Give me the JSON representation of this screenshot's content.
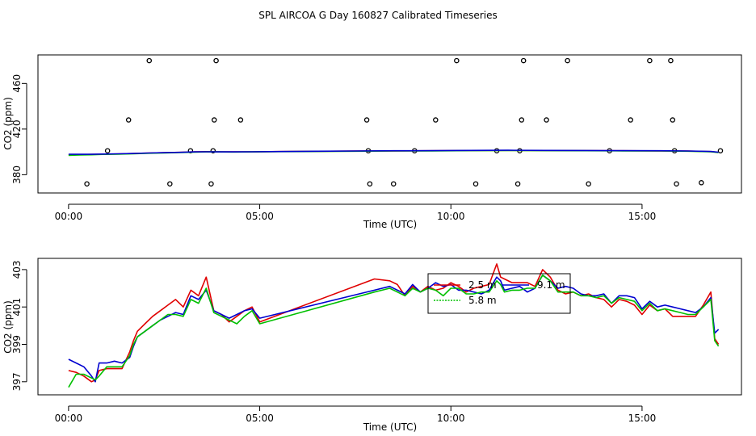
{
  "figure": {
    "title": "SPL AIRCOA G  Day 160827  Calibrated Timeseries"
  },
  "colors": {
    "series_2_5m": "#e00000",
    "series_5_8m": "#00c000",
    "series_9_1m": "#0000d0",
    "points": "#000000",
    "axes": "#000000"
  },
  "chart_data": [
    {
      "type": "line",
      "title": "",
      "xlabel": "Time (UTC)",
      "ylabel": "CO2 (ppm)",
      "x_unit": "hours UTC",
      "xlim": [
        -0.8,
        17.6
      ],
      "ylim": [
        364,
        485
      ],
      "x_ticks": [
        {
          "v": 0,
          "label": "00:00"
        },
        {
          "v": 5,
          "label": "05:00"
        },
        {
          "v": 10,
          "label": "10:00"
        },
        {
          "v": 15,
          "label": "15:00"
        }
      ],
      "y_ticks": [
        {
          "v": 380,
          "label": "380"
        },
        {
          "v": 420,
          "label": "420"
        },
        {
          "v": 460,
          "label": "460"
        }
      ],
      "grid": false,
      "scatter_points": {
        "x": [
          0.48,
          1.02,
          1.57,
          2.11,
          2.65,
          3.19,
          3.73,
          3.78,
          3.81,
          3.86,
          4.5,
          7.8,
          7.84,
          7.88,
          8.5,
          9.05,
          9.6,
          10.15,
          10.65,
          11.2,
          11.75,
          11.8,
          11.85,
          11.9,
          12.5,
          13.05,
          13.6,
          14.15,
          14.7,
          15.2,
          15.75,
          15.8,
          15.85,
          15.9,
          16.55,
          17.05
        ],
        "y": [
          372,
          401,
          428,
          480,
          372,
          401,
          372,
          401,
          428,
          480,
          428,
          428,
          401,
          372,
          372,
          401,
          428,
          480,
          372,
          401,
          372,
          401,
          428,
          480,
          428,
          480,
          372,
          401,
          428,
          480,
          480,
          428,
          401,
          372,
          373,
          401
        ]
      },
      "series": [
        {
          "key": "series_2_5m",
          "x": [
            0,
            0.3,
            0.6,
            0.9,
            1.3,
            1.7,
            2.1,
            2.5,
            2.9,
            3.3,
            3.6,
            3.9,
            4.3,
            4.8,
            5.5,
            6.5,
            7.5,
            8.5,
            9.5,
            10.5,
            11.5,
            12.5,
            13.5,
            14.5,
            15.5,
            16.2,
            16.8,
            17.0
          ],
          "y": [
            397.5,
            397.6,
            397.8,
            398.0,
            398.2,
            398.6,
            399.0,
            399.3,
            399.6,
            400.0,
            400.2,
            400.1,
            400.0,
            400.1,
            400.3,
            400.5,
            400.7,
            400.9,
            401.0,
            401.2,
            401.3,
            401.2,
            401.1,
            401.0,
            400.9,
            400.7,
            400.2,
            399.6
          ]
        },
        {
          "key": "series_5_8m",
          "x": [
            0,
            0.3,
            0.6,
            0.9,
            1.3,
            1.7,
            2.1,
            2.5,
            2.9,
            3.3,
            3.6,
            3.9,
            4.3,
            4.8,
            5.5,
            6.5,
            7.5,
            8.5,
            9.5,
            10.5,
            11.5,
            12.5,
            13.5,
            14.5,
            15.5,
            16.2,
            16.8,
            17.0
          ],
          "y": [
            397.0,
            397.3,
            397.5,
            397.8,
            398.0,
            398.3,
            398.8,
            399.1,
            399.4,
            399.8,
            400.0,
            400.0,
            399.9,
            400.0,
            400.2,
            400.4,
            400.6,
            400.8,
            400.9,
            401.1,
            401.2,
            401.1,
            401.0,
            400.9,
            400.8,
            400.6,
            400.1,
            399.4
          ]
        },
        {
          "key": "series_9_1m",
          "x": [
            0,
            0.3,
            0.6,
            0.9,
            1.3,
            1.7,
            2.1,
            2.5,
            2.9,
            3.3,
            3.6,
            3.9,
            4.3,
            4.8,
            5.5,
            6.5,
            7.5,
            8.5,
            9.5,
            10.5,
            11.5,
            12.5,
            13.5,
            14.5,
            15.5,
            16.2,
            16.8,
            17.0
          ],
          "y": [
            398.0,
            397.9,
            397.9,
            398.1,
            398.3,
            398.6,
            399.0,
            399.3,
            399.6,
            400.0,
            400.1,
            400.0,
            400.0,
            400.1,
            400.3,
            400.6,
            400.8,
            401.0,
            401.1,
            401.3,
            401.4,
            401.3,
            401.2,
            401.1,
            401.0,
            400.8,
            400.4,
            399.7
          ]
        }
      ]
    },
    {
      "type": "line",
      "title": "",
      "xlabel": "Time (UTC)",
      "ylabel": "CO2 (ppm)",
      "x_unit": "hours UTC",
      "xlim": [
        -0.8,
        17.6
      ],
      "ylim": [
        396.3,
        403.6
      ],
      "x_ticks": [
        {
          "v": 0,
          "label": "00:00"
        },
        {
          "v": 5,
          "label": "05:00"
        },
        {
          "v": 10,
          "label": "10:00"
        },
        {
          "v": 15,
          "label": "15:00"
        }
      ],
      "y_ticks": [
        {
          "v": 397,
          "label": "397"
        },
        {
          "v": 399,
          "label": "399"
        },
        {
          "v": 401,
          "label": "401"
        },
        {
          "v": 403,
          "label": "403"
        }
      ],
      "grid": false,
      "legend": {
        "placement": "top-center",
        "entries": [
          {
            "key": "series_2_5m",
            "label": "2.5 m"
          },
          {
            "key": "series_9_1m",
            "label": "9.1 m"
          },
          {
            "key": "series_5_8m",
            "label": "5.8 m"
          }
        ]
      },
      "series": [
        {
          "key": "series_2_5m",
          "name": "2.5 m",
          "x": [
            0,
            0.2,
            0.4,
            0.6,
            0.7,
            0.8,
            1.0,
            1.2,
            1.4,
            1.6,
            1.7,
            1.8,
            2.0,
            2.2,
            2.4,
            2.6,
            2.8,
            3.0,
            3.2,
            3.4,
            3.6,
            3.8,
            4.0,
            4.2,
            4.4,
            4.6,
            4.8,
            5.0,
            8.0,
            8.4,
            8.6,
            8.8,
            9.0,
            9.2,
            9.4,
            9.6,
            9.8,
            10.0,
            10.2,
            10.4,
            10.6,
            10.8,
            11.0,
            11.2,
            11.3,
            11.4,
            11.6,
            11.8,
            12.0,
            12.2,
            12.4,
            12.6,
            12.8,
            13.0,
            13.2,
            13.4,
            13.6,
            13.8,
            14.0,
            14.2,
            14.4,
            14.6,
            14.8,
            15.0,
            15.2,
            15.4,
            15.6,
            15.8,
            16.0,
            16.2,
            16.4,
            16.6,
            16.8,
            16.9,
            17.0
          ],
          "y": [
            397.6,
            397.5,
            397.3,
            397.0,
            397.1,
            397.6,
            397.7,
            397.7,
            397.7,
            398.6,
            399.2,
            399.7,
            400.1,
            400.5,
            400.8,
            401.1,
            401.4,
            401.0,
            401.9,
            401.6,
            402.6,
            400.8,
            400.6,
            400.2,
            400.5,
            400.8,
            401.0,
            400.2,
            402.5,
            402.4,
            402.2,
            401.6,
            402.1,
            401.8,
            402.1,
            401.9,
            402.0,
            402.3,
            402.1,
            401.8,
            402.0,
            402.1,
            402.2,
            403.3,
            402.6,
            402.5,
            402.3,
            402.3,
            402.3,
            402.1,
            403.0,
            402.6,
            401.9,
            401.7,
            401.8,
            401.6,
            401.7,
            401.5,
            401.4,
            401.0,
            401.4,
            401.3,
            401.1,
            400.6,
            401.1,
            400.8,
            400.9,
            400.5,
            400.5,
            400.5,
            400.5,
            401.1,
            401.8,
            399.3,
            399.0
          ]
        },
        {
          "key": "series_9_1m",
          "name": "9.1 m",
          "x": [
            0,
            0.2,
            0.4,
            0.6,
            0.7,
            0.8,
            1.0,
            1.2,
            1.4,
            1.6,
            1.7,
            1.8,
            2.0,
            2.2,
            2.4,
            2.6,
            2.8,
            3.0,
            3.2,
            3.4,
            3.6,
            3.8,
            4.0,
            4.2,
            4.4,
            4.6,
            4.8,
            5.0,
            8.0,
            8.4,
            8.6,
            8.8,
            9.0,
            9.2,
            9.4,
            9.6,
            9.8,
            10.0,
            10.2,
            10.4,
            10.6,
            10.8,
            11.0,
            11.2,
            11.3,
            11.4,
            11.6,
            11.8,
            12.0,
            12.2,
            12.4,
            12.6,
            12.8,
            13.0,
            13.2,
            13.4,
            13.6,
            13.8,
            14.0,
            14.2,
            14.4,
            14.6,
            14.8,
            15.0,
            15.2,
            15.4,
            15.6,
            15.8,
            16.0,
            16.2,
            16.4,
            16.6,
            16.8,
            16.9,
            17.0
          ],
          "y": [
            398.2,
            398.0,
            397.8,
            397.3,
            397.0,
            398.0,
            398.0,
            398.1,
            398.0,
            398.3,
            398.9,
            399.4,
            399.7,
            400.0,
            400.3,
            400.5,
            400.7,
            400.6,
            401.6,
            401.4,
            401.9,
            400.8,
            400.6,
            400.4,
            400.6,
            400.8,
            400.9,
            400.4,
            401.9,
            402.1,
            401.9,
            401.7,
            402.2,
            401.8,
            402.0,
            402.3,
            402.1,
            402.2,
            401.9,
            401.9,
            401.8,
            401.7,
            401.9,
            402.6,
            402.4,
            401.9,
            402.0,
            402.1,
            401.8,
            402.0,
            402.7,
            402.4,
            402.0,
            402.1,
            402.0,
            401.7,
            401.6,
            401.6,
            401.7,
            401.2,
            401.6,
            401.6,
            401.5,
            400.9,
            401.3,
            401.0,
            401.1,
            401.0,
            400.9,
            400.8,
            400.7,
            401.0,
            401.5,
            399.6,
            399.8
          ]
        },
        {
          "key": "series_5_8m",
          "name": "5.8 m",
          "x": [
            0,
            0.2,
            0.4,
            0.6,
            0.7,
            0.8,
            1.0,
            1.2,
            1.4,
            1.6,
            1.7,
            1.8,
            2.0,
            2.2,
            2.4,
            2.6,
            2.8,
            3.0,
            3.2,
            3.4,
            3.6,
            3.8,
            4.0,
            4.2,
            4.4,
            4.6,
            4.8,
            5.0,
            8.0,
            8.4,
            8.6,
            8.8,
            9.0,
            9.2,
            9.4,
            9.6,
            9.8,
            10.0,
            10.2,
            10.4,
            10.6,
            10.8,
            11.0,
            11.2,
            11.3,
            11.4,
            11.6,
            11.8,
            12.0,
            12.2,
            12.4,
            12.6,
            12.8,
            13.0,
            13.2,
            13.4,
            13.6,
            13.8,
            14.0,
            14.2,
            14.4,
            14.6,
            14.8,
            15.0,
            15.2,
            15.4,
            15.6,
            15.8,
            16.0,
            16.2,
            16.4,
            16.6,
            16.8,
            16.9,
            17.0
          ],
          "y": [
            396.7,
            397.4,
            397.4,
            397.2,
            397.1,
            397.3,
            397.8,
            397.8,
            397.8,
            398.4,
            399.0,
            399.4,
            399.7,
            400.0,
            400.3,
            400.6,
            400.6,
            400.5,
            401.4,
            401.2,
            402.0,
            400.7,
            400.5,
            400.3,
            400.1,
            400.5,
            400.8,
            400.1,
            401.8,
            402.0,
            401.8,
            401.6,
            402.0,
            401.8,
            402.0,
            401.9,
            401.6,
            402.0,
            402.0,
            401.7,
            401.7,
            401.8,
            401.8,
            402.4,
            402.2,
            401.8,
            401.9,
            401.9,
            402.0,
            402.0,
            402.7,
            402.4,
            401.8,
            401.8,
            401.8,
            401.6,
            401.6,
            401.5,
            401.6,
            401.2,
            401.5,
            401.4,
            401.3,
            400.8,
            401.2,
            400.8,
            400.9,
            400.8,
            400.7,
            400.6,
            400.6,
            401.0,
            401.4,
            399.2,
            398.9
          ]
        }
      ]
    }
  ]
}
